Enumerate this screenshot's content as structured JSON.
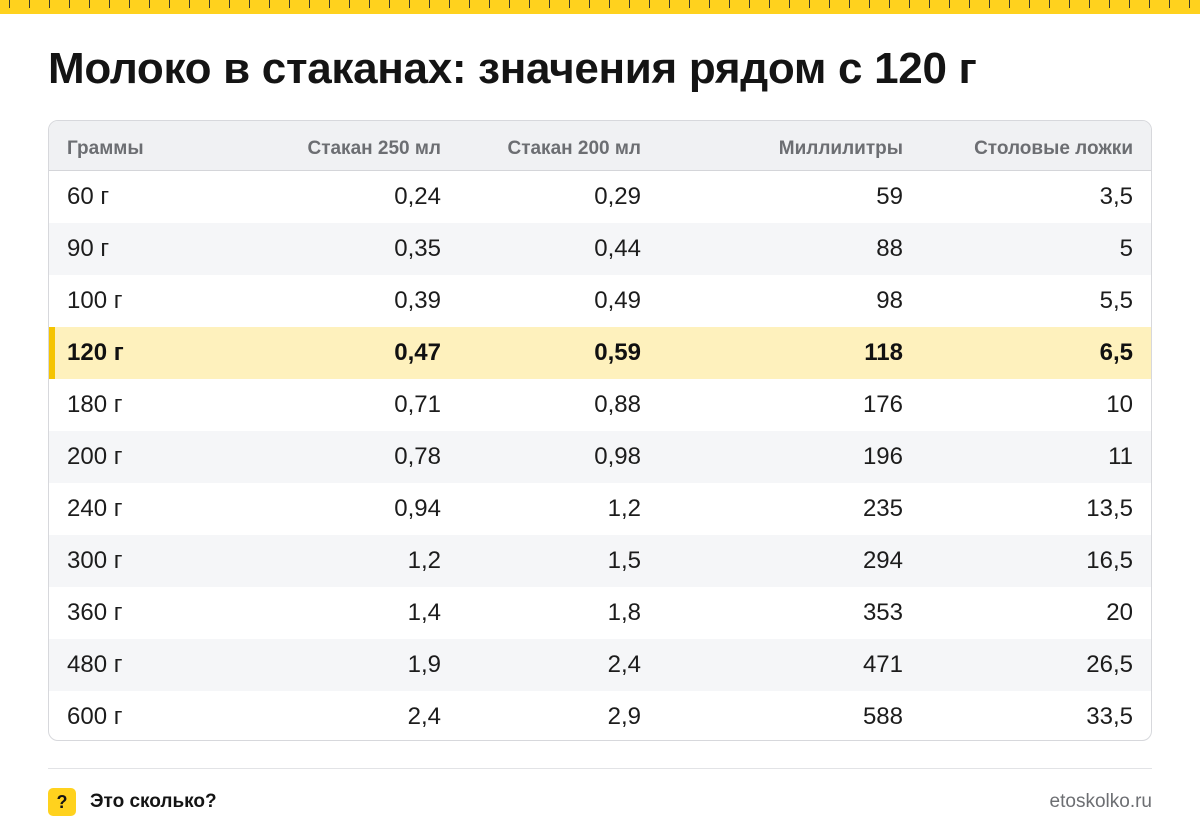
{
  "page": {
    "title": "Молоко в стаканах: значения рядом с 120 г"
  },
  "colors": {
    "accent": "#ffd21e",
    "highlight_row": "#fef1bd",
    "highlight_bar": "#f5c400",
    "header_bg": "#f0f1f3",
    "stripe": "#f5f6f8"
  },
  "chart_data": {
    "type": "table",
    "columns": [
      "Граммы",
      "Стакан 250 мл",
      "Стакан 200 мл",
      "Миллилитры",
      "Столовые ложки"
    ],
    "rows": [
      [
        "60 г",
        "0,24",
        "0,29",
        "59",
        "3,5"
      ],
      [
        "90 г",
        "0,35",
        "0,44",
        "88",
        "5"
      ],
      [
        "100 г",
        "0,39",
        "0,49",
        "98",
        "5,5"
      ],
      [
        "120 г",
        "0,47",
        "0,59",
        "118",
        "6,5"
      ],
      [
        "180 г",
        "0,71",
        "0,88",
        "176",
        "10"
      ],
      [
        "200 г",
        "0,78",
        "0,98",
        "196",
        "11"
      ],
      [
        "240 г",
        "0,94",
        "1,2",
        "235",
        "13,5"
      ],
      [
        "300 г",
        "1,2",
        "1,5",
        "294",
        "16,5"
      ],
      [
        "360 г",
        "1,4",
        "1,8",
        "353",
        "20"
      ],
      [
        "480 г",
        "1,9",
        "2,4",
        "471",
        "26,5"
      ],
      [
        "600 г",
        "2,4",
        "2,9",
        "588",
        "33,5"
      ]
    ],
    "highlighted_row": 3
  },
  "footer": {
    "badge_icon": "?",
    "brand": "Это сколько?",
    "site": "etoskolko.ru"
  }
}
